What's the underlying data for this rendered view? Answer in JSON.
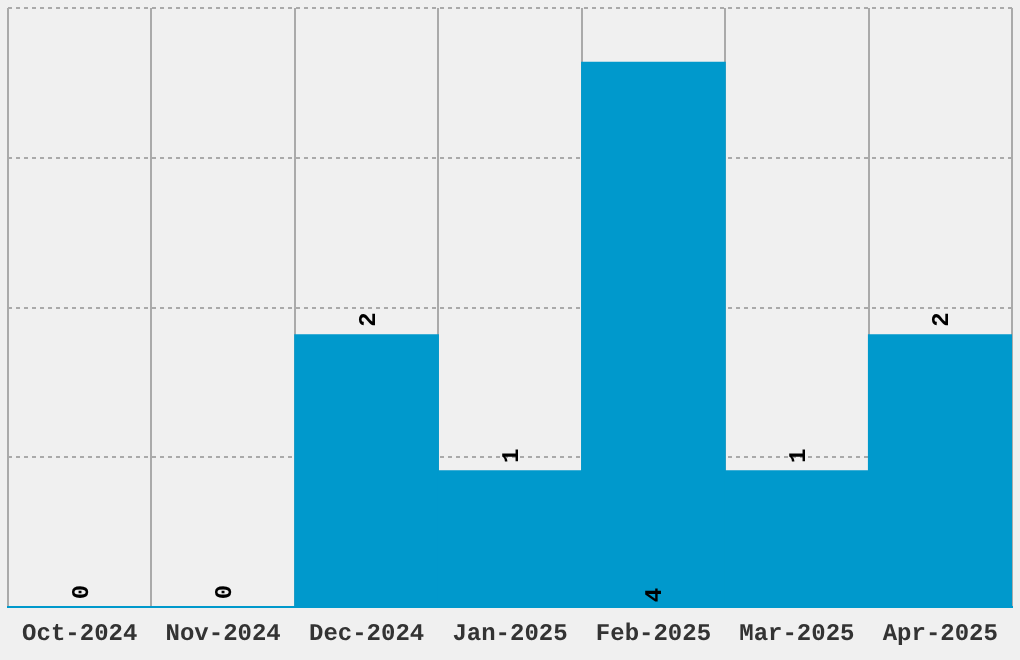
{
  "chart_data": {
    "type": "bar",
    "categories": [
      "Oct-2024",
      "Nov-2024",
      "Dec-2024",
      "Jan-2025",
      "Feb-2025",
      "Mar-2025",
      "Apr-2025"
    ],
    "values": [
      0,
      0,
      2,
      1,
      4,
      1,
      2
    ],
    "color": "#0099cc",
    "ylim": [
      0,
      4.4
    ],
    "yticks": [
      {
        "value": 0,
        "label": null
      },
      {
        "value": 1.1,
        "label": null
      },
      {
        "value": 2.2,
        "label": null
      },
      {
        "value": 3.3,
        "label": null
      },
      {
        "value": 4.4,
        "label": null
      }
    ],
    "tick_labels": "x",
    "grid": true,
    "data_labels": true
  }
}
